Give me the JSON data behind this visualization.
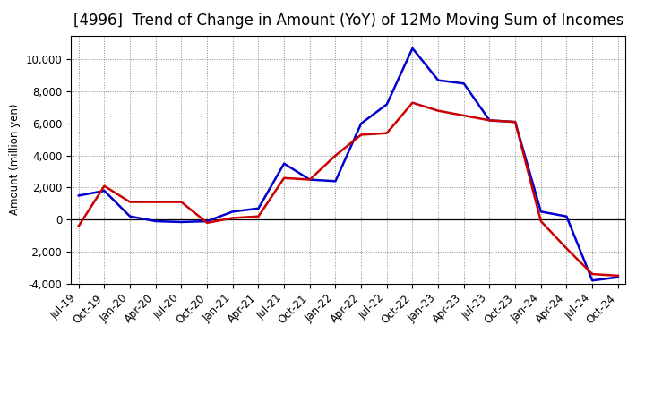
{
  "title": "[4996]  Trend of Change in Amount (YoY) of 12Mo Moving Sum of Incomes",
  "ylabel": "Amount (million yen)",
  "x_labels": [
    "Jul-19",
    "Oct-19",
    "Jan-20",
    "Apr-20",
    "Jul-20",
    "Oct-20",
    "Jan-21",
    "Apr-21",
    "Jul-21",
    "Oct-21",
    "Jan-22",
    "Apr-22",
    "Jul-22",
    "Oct-22",
    "Jan-23",
    "Apr-23",
    "Jul-23",
    "Oct-23",
    "Jan-24",
    "Apr-24",
    "Jul-24",
    "Oct-24"
  ],
  "ordinary_income": [
    1500,
    1800,
    200,
    -100,
    -150,
    -100,
    500,
    700,
    3500,
    2500,
    2400,
    6000,
    7200,
    10700,
    8700,
    8500,
    6200,
    6100,
    500,
    200,
    -3800,
    -3600
  ],
  "net_income": [
    -400,
    2100,
    1100,
    1100,
    1100,
    -200,
    100,
    200,
    2600,
    2500,
    4000,
    5300,
    5400,
    7300,
    6800,
    6500,
    6200,
    6100,
    -100,
    -1800,
    -3400,
    -3500
  ],
  "ordinary_color": "#0000cc",
  "net_color": "#cc0000",
  "bg_color": "#ffffff",
  "ylim": [
    -4000,
    11500
  ],
  "yticks": [
    -4000,
    -2000,
    0,
    2000,
    4000,
    6000,
    8000,
    10000
  ],
  "grid_color": "#888888",
  "title_fontsize": 12,
  "axis_fontsize": 8.5,
  "legend_fontsize": 10
}
